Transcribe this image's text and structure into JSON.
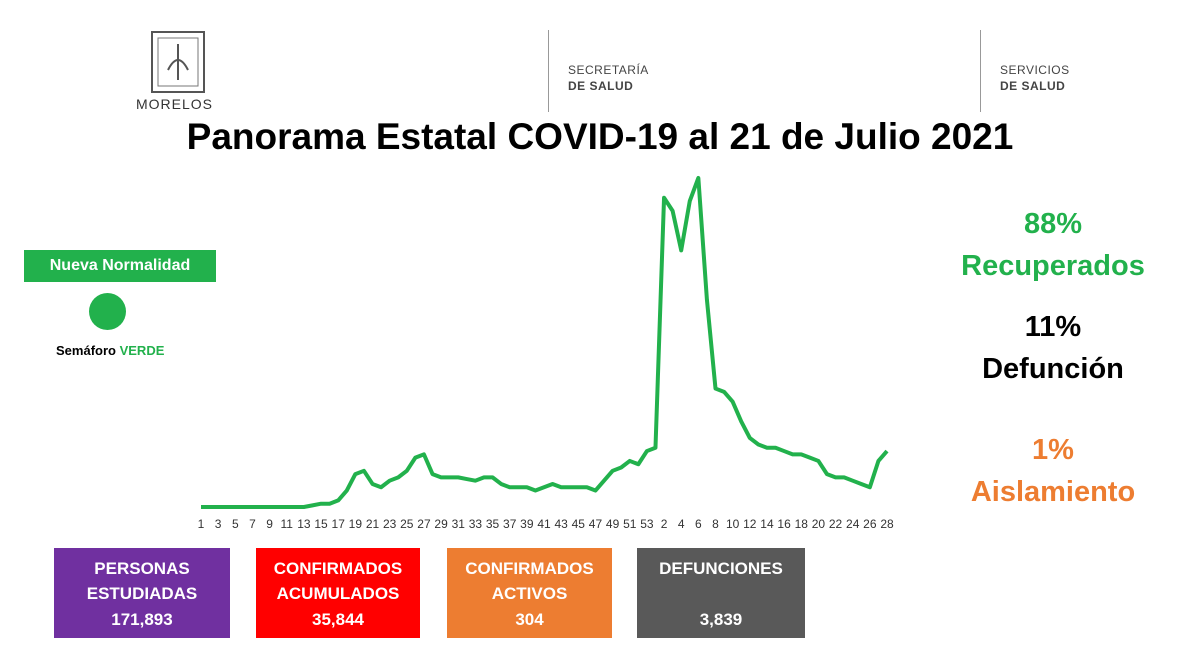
{
  "header": {
    "logo_name": "MORELOS",
    "secretaria": [
      "SECRETARÍA",
      "DE SALUD"
    ],
    "servicios": [
      "SERVICIOS",
      "DE SALUD"
    ]
  },
  "chart_data": {
    "type": "line",
    "title": "Panorama Estatal COVID-19 al 21 de Julio 2021",
    "categories": [
      1,
      null,
      3,
      null,
      5,
      null,
      7,
      null,
      9,
      null,
      11,
      null,
      13,
      null,
      15,
      null,
      17,
      null,
      19,
      null,
      21,
      null,
      23,
      null,
      25,
      null,
      27,
      null,
      29,
      null,
      31,
      null,
      33,
      null,
      35,
      null,
      37,
      null,
      39,
      null,
      41,
      null,
      43,
      null,
      45,
      null,
      47,
      null,
      49,
      null,
      51,
      null,
      53,
      null,
      2,
      null,
      4,
      null,
      6,
      null,
      8,
      null,
      10,
      null,
      12,
      null,
      14,
      null,
      16,
      null,
      18,
      null,
      20,
      null,
      22,
      null,
      24,
      null,
      26,
      null,
      28
    ],
    "values": [
      0,
      0,
      0,
      0,
      0,
      0,
      0,
      0,
      0,
      0,
      0,
      0,
      0,
      0.5,
      1,
      1,
      2,
      5,
      10,
      11,
      7,
      6,
      8,
      9,
      11,
      15,
      16,
      10,
      9,
      9,
      9,
      8.5,
      8,
      9,
      9,
      7,
      6,
      6,
      6,
      5,
      6,
      7,
      6,
      6,
      6,
      6,
      5,
      8,
      11,
      12,
      14,
      13,
      17,
      18,
      94,
      90,
      78,
      93,
      100,
      63,
      36,
      35,
      32,
      26,
      21,
      19,
      18,
      18,
      17,
      16,
      16,
      15,
      14,
      10,
      9,
      9,
      8,
      7,
      6,
      14,
      17
    ],
    "color": "#22b14c",
    "ylim": [
      0,
      100
    ]
  },
  "status": {
    "badge": "Nueva Normalidad",
    "semaforo_label": "Semáforo",
    "semaforo_status": "VERDE"
  },
  "stats": [
    {
      "value": "88%",
      "label": "Recuperados"
    },
    {
      "value": "11%",
      "label": "Defunción"
    },
    {
      "value": "1%",
      "label": "Aislamiento"
    }
  ],
  "cards": [
    {
      "title": [
        "PERSONAS",
        "ESTUDIADAS"
      ],
      "value": "171,893"
    },
    {
      "title": [
        "CONFIRMADOS",
        "ACUMULADOS"
      ],
      "value": "35,844"
    },
    {
      "title": [
        "CONFIRMADOS",
        "ACTIVOS"
      ],
      "value": "304"
    },
    {
      "title": [
        "DEFUNCIONES"
      ],
      "value": "3,839"
    }
  ]
}
